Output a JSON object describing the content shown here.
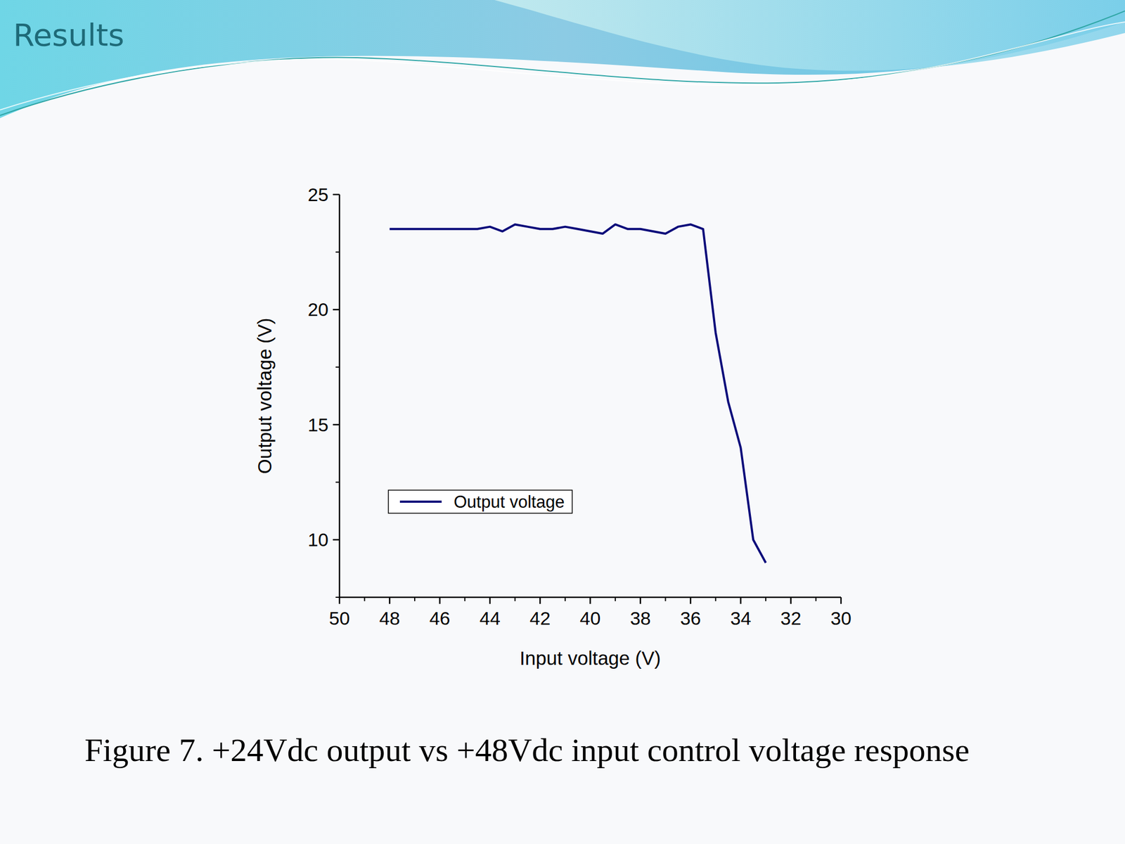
{
  "heading": "Results",
  "chart_data": {
    "type": "line",
    "title": "Figure 7. +24Vdc output vs +48Vdc input control voltage response",
    "x_label": "Input voltage (V)",
    "y_label": "Output voltage (V)",
    "x": [
      48,
      47.5,
      47,
      46.5,
      46,
      45.5,
      45,
      44.5,
      44,
      43.5,
      43,
      42.5,
      42,
      41.5,
      41,
      40.5,
      40,
      39.5,
      39,
      38.5,
      38,
      37.5,
      37,
      36.5,
      36,
      35.5,
      35,
      34.5,
      34,
      33.5,
      33
    ],
    "series": [
      {
        "name": "Output voltage",
        "color": "#0b0b7a",
        "values": [
          23.5,
          23.5,
          23.5,
          23.5,
          23.5,
          23.5,
          23.5,
          23.5,
          23.6,
          23.4,
          23.7,
          23.6,
          23.5,
          23.5,
          23.6,
          23.5,
          23.4,
          23.3,
          23.7,
          23.5,
          23.5,
          23.4,
          23.3,
          23.6,
          23.7,
          23.5,
          19.0,
          16.0,
          14.0,
          10.0,
          9.0
        ]
      }
    ],
    "xlim": [
      50,
      30
    ],
    "xticks": [
      50,
      48,
      46,
      44,
      42,
      40,
      38,
      36,
      34,
      32,
      30
    ],
    "ylim": [
      7.5,
      25
    ],
    "yticks": [
      10,
      15,
      20,
      25
    ],
    "grid": false,
    "legend": "lower left"
  }
}
